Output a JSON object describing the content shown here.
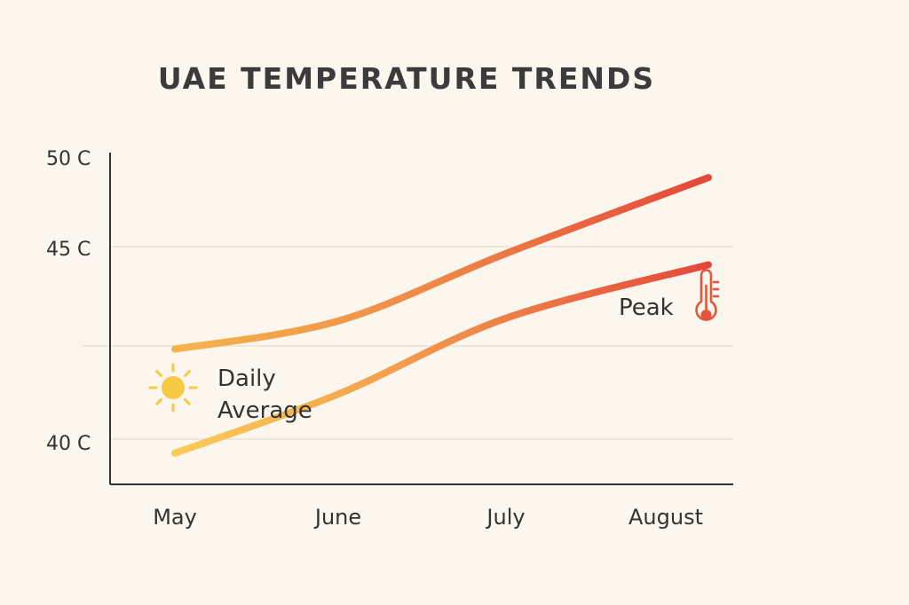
{
  "chart_data": {
    "type": "line",
    "title": "UAE TEMPERATURE TRENDS",
    "categories": [
      "May",
      "June",
      "July",
      "August"
    ],
    "y_ticks": [
      "40 C",
      "45 C",
      "50 C"
    ],
    "ylim": [
      38,
      50
    ],
    "grid": true,
    "series": [
      {
        "values": [
          43.2,
          44.2,
          46.6,
          49.3
        ],
        "color": "#e9573a"
      },
      {
        "values": [
          39.5,
          41.6,
          44.3,
          46.2
        ],
        "color": "#e9573a"
      }
    ],
    "annotations": [
      {
        "lines": [
          "Daily",
          "Average"
        ],
        "icon": "sun-icon",
        "color": "#f6c945"
      },
      {
        "lines": [
          "Peak"
        ],
        "icon": "thermometer-icon",
        "color": "#e5553b"
      }
    ]
  }
}
